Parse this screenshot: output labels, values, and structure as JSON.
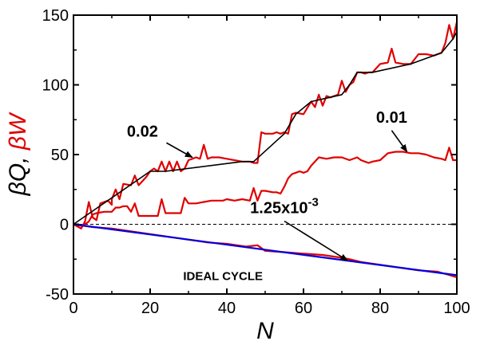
{
  "chart_data": {
    "type": "line",
    "xlabel": "N",
    "ylabel": {
      "parts": [
        {
          "text": "βQ",
          "color": "#000000"
        },
        {
          "text": ", ",
          "color": "#000000"
        },
        {
          "text": "βW",
          "color": "#e00000"
        }
      ]
    },
    "xlim": [
      0,
      100
    ],
    "ylim": [
      -50,
      150
    ],
    "xticks": [
      0,
      20,
      40,
      60,
      80,
      100
    ],
    "yticks": [
      -50,
      0,
      50,
      100,
      150
    ],
    "xtick_labels": [
      "0",
      "20",
      "40",
      "60",
      "80",
      "100"
    ],
    "ytick_labels": [
      "-50",
      "0",
      "50",
      "100",
      "150"
    ],
    "grid": false,
    "zero_line": {
      "y": 0,
      "style": "dashed"
    },
    "series": [
      {
        "color": "#e00000",
        "x": [
          0,
          2,
          3,
          4,
          5,
          6,
          7,
          9,
          10,
          10,
          11,
          12,
          13,
          15,
          16,
          17,
          19,
          20,
          21,
          22,
          23,
          24,
          25,
          26,
          27,
          28,
          29,
          30,
          31,
          32,
          33,
          34,
          35,
          36,
          38,
          40,
          44,
          46,
          47,
          48,
          49,
          50,
          52,
          53,
          54,
          55,
          56,
          57,
          58,
          60,
          62,
          63,
          64,
          65,
          66,
          67,
          68,
          69,
          70,
          71,
          72,
          73,
          74,
          75,
          76,
          77,
          78,
          80,
          82,
          83,
          84,
          86,
          88,
          90,
          92,
          94,
          95,
          96,
          97,
          98,
          99,
          100
        ],
        "y": [
          0,
          -3,
          2,
          16,
          5,
          3,
          15,
          17,
          14,
          18,
          25,
          18,
          29,
          28,
          35,
          28,
          34,
          38,
          40,
          38,
          45,
          38,
          45,
          38,
          45,
          38,
          40,
          46,
          47,
          48,
          47,
          57,
          47,
          48,
          48,
          47,
          45,
          45,
          44,
          44,
          66,
          65,
          65,
          66,
          65,
          66,
          65,
          79,
          80,
          79,
          88,
          84,
          93,
          85,
          92,
          91,
          92,
          93,
          103,
          95,
          100,
          102,
          109,
          109,
          108,
          109,
          109,
          115,
          116,
          126,
          116,
          115,
          115,
          122,
          122,
          121,
          122,
          123,
          130,
          143,
          133,
          145
        ]
      },
      {
        "color": "#e00000",
        "x": [
          0,
          2,
          3,
          4,
          5,
          6,
          8,
          10,
          11,
          12,
          13,
          14,
          15,
          16,
          17,
          18,
          20,
          22,
          23,
          24,
          26,
          28,
          29,
          30,
          31,
          32,
          34,
          36,
          38,
          39,
          40,
          42,
          44,
          46,
          47,
          48,
          49,
          50,
          52,
          53,
          54,
          55,
          56,
          57,
          58,
          59,
          60,
          61,
          62,
          64,
          66,
          68,
          70,
          72,
          74,
          75,
          76,
          77,
          78,
          80,
          82,
          84,
          86,
          88,
          90,
          92,
          94,
          96,
          97,
          98,
          99,
          100
        ],
        "y": [
          0,
          -1,
          0,
          2,
          7,
          8,
          9,
          9,
          12,
          12,
          13,
          13,
          9,
          15,
          6,
          6,
          6,
          6,
          18,
          8,
          8,
          8,
          19,
          15,
          15,
          15,
          16,
          17,
          17,
          17,
          18,
          17,
          18,
          17,
          26,
          17,
          24,
          24,
          23,
          23,
          22,
          27,
          33,
          36,
          37,
          38,
          37,
          38,
          42,
          48,
          47,
          48,
          48,
          46,
          48,
          46,
          45,
          44,
          45,
          46,
          51,
          52,
          52,
          51,
          51,
          50,
          48,
          47,
          46,
          55,
          46,
          46
        ]
      },
      {
        "color": "#e00000",
        "x": [
          0,
          5,
          10,
          15,
          20,
          25,
          30,
          35,
          40,
          45,
          48,
          50,
          55,
          60,
          65,
          70,
          72,
          75,
          80,
          85,
          90,
          95,
          100
        ],
        "y": [
          0,
          -2,
          -3,
          -5,
          -7,
          -9,
          -11,
          -13,
          -14,
          -16,
          -15,
          -19,
          -20,
          -21,
          -22,
          -24,
          -25,
          -27,
          -29,
          -31,
          -33,
          -34,
          -38
        ]
      },
      {
        "color": "#0000e0",
        "x": [
          0,
          100
        ],
        "y": [
          0,
          -36.5
        ]
      },
      {
        "color": "#000000",
        "x": [
          0,
          20,
          24,
          44,
          47,
          55,
          58,
          62,
          70,
          72,
          74,
          78,
          88,
          96,
          99,
          100
        ],
        "y": [
          0,
          38,
          38,
          45,
          45,
          65,
          79,
          88,
          93,
          100,
          109,
          109,
          115,
          123,
          133,
          138
        ]
      }
    ],
    "annotations": [
      {
        "text": "0.02",
        "x": 18,
        "y": 63,
        "arrow_to": [
          31,
          48
        ]
      },
      {
        "text": "0.01",
        "x": 83,
        "y": 73,
        "arrow_to": [
          87,
          52
        ]
      },
      {
        "text": "1.25x10",
        "sup": "-3",
        "x": 55,
        "y": 8,
        "arrow_to": [
          71.5,
          -26
        ]
      },
      {
        "text": "IDEAL CYCLE",
        "x": 39,
        "y": -40
      }
    ]
  }
}
